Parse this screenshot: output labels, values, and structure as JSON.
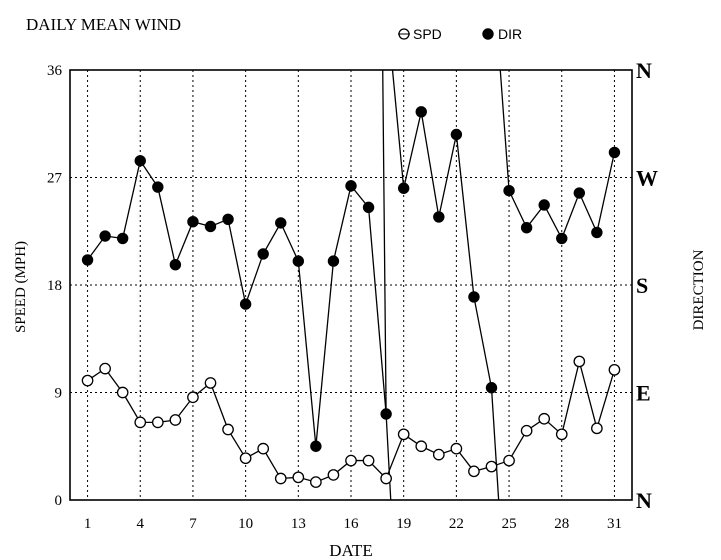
{
  "chart_data": {
    "type": "line",
    "title": "DAILY MEAN WIND",
    "xlabel": "DATE",
    "ylabel": "SPEED (MPH)",
    "y2label": "DIRECTION",
    "x": [
      1,
      2,
      3,
      4,
      5,
      6,
      7,
      8,
      9,
      10,
      11,
      12,
      13,
      14,
      15,
      16,
      17,
      18,
      19,
      20,
      21,
      22,
      23,
      24,
      25,
      26,
      27,
      28,
      29,
      30,
      31
    ],
    "xticks": [
      1,
      4,
      7,
      10,
      13,
      16,
      19,
      22,
      25,
      28,
      31
    ],
    "xtick_labels": [
      "1",
      "4",
      "7",
      "10",
      "13",
      "16",
      "19",
      "22",
      "25",
      "28",
      "31"
    ],
    "xlim": [
      0,
      32
    ],
    "ylim": [
      0,
      36
    ],
    "yticks": [
      0,
      9,
      18,
      27,
      36
    ],
    "ytick_labels": [
      "0",
      "9",
      "18",
      "27",
      "36"
    ],
    "y2_ticks": [
      {
        "label": "N",
        "value": 0
      },
      {
        "label": "E",
        "value": 90
      },
      {
        "label": "S",
        "value": 180
      },
      {
        "label": "W",
        "value": 270
      },
      {
        "label": "N",
        "value": 360
      }
    ],
    "grid": true,
    "legend_position": "top",
    "series": [
      {
        "name": "SPD",
        "axis": "speed",
        "marker": "open-circle",
        "values": [
          10.0,
          11.0,
          9.0,
          6.5,
          6.5,
          6.7,
          8.6,
          9.8,
          5.9,
          3.5,
          4.3,
          1.8,
          1.9,
          1.5,
          2.1,
          3.3,
          3.3,
          1.8,
          5.5,
          4.5,
          3.8,
          4.3,
          2.4,
          2.8,
          3.3,
          5.8,
          6.8,
          5.5,
          11.6,
          6.0,
          10.9
        ]
      },
      {
        "name": "DIR",
        "axis": "direction",
        "marker": "filled-circle",
        "values": [
          201,
          221,
          219,
          284,
          262,
          197,
          233,
          229,
          235,
          164,
          206,
          232,
          200,
          45,
          200,
          263,
          245,
          72,
          261,
          325,
          237,
          306,
          170,
          94,
          259,
          228,
          247,
          219,
          257,
          224,
          291
        ],
        "offscale_segments": [
          {
            "from_day": 17.8,
            "from_deg": 370,
            "to_day": 18.0,
            "to_deg": 72
          },
          {
            "from_day": 18.0,
            "from_deg": 72,
            "to_day": 18.3,
            "to_deg": -10
          },
          {
            "from_day": 24.0,
            "from_deg": 94,
            "to_day": 24.45,
            "to_deg": -10
          },
          {
            "from_day": 24.45,
            "from_deg": 370,
            "to_day": 25.0,
            "to_deg": 259
          }
        ]
      }
    ]
  },
  "colors": {
    "background": "#ffffff",
    "line": "#000000",
    "grid": "#000000",
    "axis": "#000000"
  }
}
